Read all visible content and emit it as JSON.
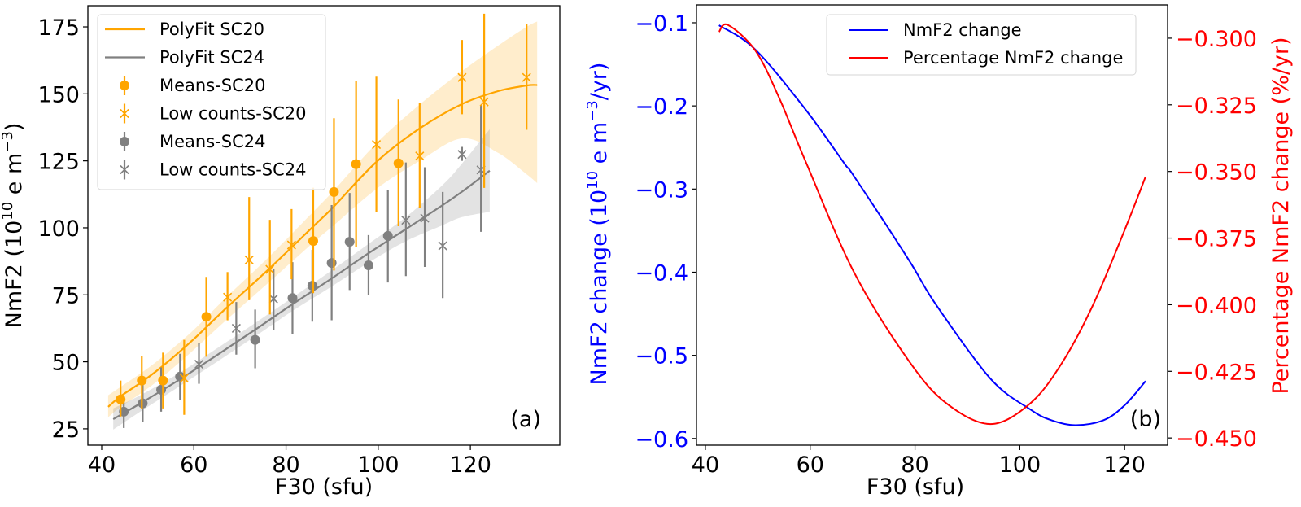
{
  "chart_data": [
    {
      "id": "a",
      "type": "scatter",
      "panel_label": "(a)",
      "xlabel": "F30 (sfu)",
      "ylabel": "NmF2 (10",
      "ylabel_sup": "10",
      "ylabel_mid": " e m",
      "ylabel_sup2": "−3",
      "ylabel_end": ")",
      "xlim": [
        37.0,
        139.4
      ],
      "ylim": [
        18.9,
        182.9
      ],
      "xticks": [
        40,
        60,
        80,
        100,
        120
      ],
      "yticks": [
        25,
        50,
        75,
        100,
        125,
        150,
        175
      ],
      "grid": false,
      "legend_position": "top-left",
      "legend": [
        {
          "label": "PolyFit SC20",
          "kind": "line",
          "color": "#ffa500"
        },
        {
          "label": "PolyFit SC24",
          "kind": "line",
          "color": "#808080"
        },
        {
          "label": "Means-SC20",
          "kind": "dot",
          "color": "#ffa500"
        },
        {
          "label": "Low counts-SC20",
          "kind": "cross",
          "color": "#ffa500"
        },
        {
          "label": "Means-SC24",
          "kind": "dot",
          "color": "#808080"
        },
        {
          "label": "Low counts-SC24",
          "kind": "cross",
          "color": "#808080"
        }
      ],
      "series": [
        {
          "name": "PolyFit SC20",
          "kind": "fit",
          "color": "#ffa500",
          "x": [
            41.4,
            44,
            48.7,
            53.3,
            60,
            67.3,
            76.5,
            85.9,
            90.4,
            99.6,
            109.0,
            118.2,
            126,
            132.2,
            134.5
          ],
          "y": [
            33.2,
            37.0,
            42.5,
            48.5,
            58.5,
            70.5,
            85.0,
            100.5,
            108.0,
            124.6,
            137.1,
            146.2,
            151.0,
            153.1,
            153.3
          ],
          "upper": [
            37.5,
            40.5,
            46.0,
            52.0,
            62.0,
            74.5,
            89.5,
            106.0,
            114.0,
            131.5,
            146.0,
            158.5,
            168.0,
            175.0,
            177.0
          ],
          "lower": [
            29.3,
            33.0,
            38.5,
            44.5,
            54.5,
            66.0,
            80.0,
            94.5,
            101.0,
            114.5,
            125.0,
            133.4,
            128.0,
            120.0,
            116.7
          ]
        },
        {
          "name": "PolyFit SC24",
          "kind": "fit",
          "color": "#808080",
          "x": [
            42.5,
            48.9,
            57.0,
            65,
            73.3,
            81.4,
            89.8,
            97.9,
            106.0,
            114.0,
            118.2,
            124.2
          ],
          "y": [
            28.6,
            35.0,
            43.5,
            52.5,
            62.0,
            71.5,
            81.0,
            90.5,
            99.5,
            108.5,
            113.5,
            121.3
          ],
          "upper": [
            32.6,
            38.0,
            46.0,
            55.0,
            64.5,
            74.0,
            84.0,
            94.0,
            104.0,
            116.0,
            124.0,
            136.8
          ],
          "lower": [
            24.7,
            32.0,
            41.0,
            50.0,
            59.5,
            69.0,
            78.0,
            87.0,
            95.0,
            101.0,
            104.0,
            106.0
          ]
        },
        {
          "name": "Means-SC20",
          "kind": "dot",
          "color": "#ffa500",
          "points": [
            {
              "x": 44.1,
              "y": 36.0,
              "lo": 29.6,
              "hi": 43.0
            },
            {
              "x": 48.7,
              "y": 43.0,
              "lo": 32.5,
              "hi": 52.1
            },
            {
              "x": 53.3,
              "y": 43.0,
              "lo": 32.6,
              "hi": 53.4
            },
            {
              "x": 62.7,
              "y": 66.8,
              "lo": 51.9,
              "hi": 81.7
            },
            {
              "x": 85.9,
              "y": 95.1,
              "lo": 75.6,
              "hi": 115.0
            },
            {
              "x": 90.4,
              "y": 113.4,
              "lo": 84.1,
              "hi": 140.9
            },
            {
              "x": 95.2,
              "y": 123.8,
              "lo": 93.0,
              "hi": 154.9
            },
            {
              "x": 104.4,
              "y": 124.1,
              "lo": 100.6,
              "hi": 147.9
            }
          ]
        },
        {
          "name": "Low counts-SC20",
          "kind": "cross",
          "color": "#ffa500",
          "points": [
            {
              "x": 57.9,
              "y": 43.9,
              "lo": 30.2,
              "hi": 58.2
            },
            {
              "x": 67.3,
              "y": 74.1,
              "lo": 65.5,
              "hi": 83.5
            },
            {
              "x": 72.0,
              "y": 88.0,
              "lo": 73.0,
              "hi": 111.5
            },
            {
              "x": 76.5,
              "y": 84.5,
              "lo": 67.7,
              "hi": 103.0
            },
            {
              "x": 81.2,
              "y": 93.6,
              "lo": 80.8,
              "hi": 107.0
            },
            {
              "x": 99.6,
              "y": 131.1,
              "lo": 105.8,
              "hi": 156.4
            },
            {
              "x": 109.0,
              "y": 126.8,
              "lo": 107.3,
              "hi": 146.6
            },
            {
              "x": 118.2,
              "y": 156.1,
              "lo": 142.4,
              "hi": 170.1
            },
            {
              "x": 123.0,
              "y": 147.0,
              "lo": 114.9,
              "hi": 179.9
            },
            {
              "x": 132.2,
              "y": 156.1,
              "lo": 136.6,
              "hi": 175.9
            }
          ]
        },
        {
          "name": "Means-SC24",
          "kind": "dot",
          "color": "#808080",
          "points": [
            {
              "x": 44.8,
              "y": 31.4,
              "lo": 25.3,
              "hi": 37.2
            },
            {
              "x": 48.9,
              "y": 34.5,
              "lo": 27.4,
              "hi": 42.3
            },
            {
              "x": 52.9,
              "y": 39.6,
              "lo": 31.4,
              "hi": 47.9
            },
            {
              "x": 57.0,
              "y": 44.5,
              "lo": 35.7,
              "hi": 53.0
            },
            {
              "x": 73.3,
              "y": 58.2,
              "lo": 47.6,
              "hi": 69.5
            },
            {
              "x": 81.4,
              "y": 73.8,
              "lo": 60.4,
              "hi": 87.2
            },
            {
              "x": 85.7,
              "y": 78.4,
              "lo": 65.0,
              "hi": 91.8
            },
            {
              "x": 89.9,
              "y": 86.9,
              "lo": 65.5,
              "hi": 108.5
            },
            {
              "x": 93.8,
              "y": 94.8,
              "lo": 76.8,
              "hi": 113.0
            },
            {
              "x": 97.9,
              "y": 86.0,
              "lo": 75.0,
              "hi": 97.3
            },
            {
              "x": 102.1,
              "y": 97.0,
              "lo": 79.6,
              "hi": 114.0
            }
          ]
        },
        {
          "name": "Low counts-SC24",
          "kind": "cross",
          "color": "#808080",
          "points": [
            {
              "x": 61.1,
              "y": 49.1,
              "lo": 41.8,
              "hi": 57.0
            },
            {
              "x": 69.2,
              "y": 62.5,
              "lo": 52.7,
              "hi": 72.3
            },
            {
              "x": 77.3,
              "y": 73.5,
              "lo": 61.9,
              "hi": 84.8
            },
            {
              "x": 106.0,
              "y": 102.8,
              "lo": 82.0,
              "hi": 124.4
            },
            {
              "x": 110.1,
              "y": 103.6,
              "lo": 85.4,
              "hi": 122.6
            },
            {
              "x": 114.0,
              "y": 93.3,
              "lo": 73.8,
              "hi": 113.4
            },
            {
              "x": 118.2,
              "y": 127.4,
              "lo": 125.0,
              "hi": 130.2
            },
            {
              "x": 122.3,
              "y": 121.6,
              "lo": 98.5,
              "hi": 145.7
            }
          ]
        }
      ]
    },
    {
      "id": "b",
      "type": "line",
      "panel_label": "(b)",
      "xlabel": "F30 (sfu)",
      "ylabel_left": "NmF2 change (10",
      "ylabel_left_sup": "10",
      "ylabel_left_mid": " e m",
      "ylabel_left_sup2": "−3",
      "ylabel_left_end": "/yr)",
      "ylabel_right": "Percentage NmF2 change (%/yr)",
      "xlim": [
        38.3,
        128.2
      ],
      "ylim_left": [
        -0.608,
        -0.0785
      ],
      "ylim_right": [
        -0.4527,
        -0.2875
      ],
      "xticks": [
        40,
        60,
        80,
        100,
        120
      ],
      "yticks_left": [
        -0.1,
        -0.2,
        -0.3,
        -0.4,
        -0.5,
        -0.6
      ],
      "yticks_left_labels": [
        "−0.1",
        "−0.2",
        "−0.3",
        "−0.4",
        "−0.5",
        "−0.6"
      ],
      "yticks_right": [
        -0.3,
        -0.325,
        -0.35,
        -0.375,
        -0.4,
        -0.425,
        -0.45
      ],
      "yticks_right_labels": [
        "−0.300",
        "−0.325",
        "−0.350",
        "−0.375",
        "−0.400",
        "−0.425",
        "−0.450"
      ],
      "grid": false,
      "legend_position": "top-right",
      "legend": [
        {
          "label": "NmF2 change",
          "color": "#0000ff"
        },
        {
          "label": "Percentage NmF2 change",
          "color": "#ff0000"
        }
      ],
      "series": [
        {
          "name": "NmF2 change",
          "axis": "left",
          "color": "#0000ff",
          "x": [
            42.6,
            49.5,
            59.2,
            66.5,
            68.4,
            78.8,
            83.9,
            94.4,
            102.0,
            106,
            110.7,
            116,
            120,
            124.0
          ],
          "y": [
            -0.103,
            -0.132,
            -0.205,
            -0.269,
            -0.285,
            -0.385,
            -0.438,
            -0.528,
            -0.565,
            -0.578,
            -0.584,
            -0.578,
            -0.56,
            -0.531
          ]
        },
        {
          "name": "Percentage NmF2 change",
          "axis": "right",
          "color": "#ff0000",
          "x": [
            42.6,
            44.3,
            49.5,
            54,
            59.2,
            68.4,
            78.8,
            86,
            94.4,
            102.0,
            108,
            114,
            120,
            124.0
          ],
          "y": [
            -0.2976,
            -0.295,
            -0.3045,
            -0.322,
            -0.3466,
            -0.388,
            -0.421,
            -0.437,
            -0.4448,
            -0.437,
            -0.422,
            -0.4,
            -0.372,
            -0.352
          ]
        }
      ]
    }
  ]
}
